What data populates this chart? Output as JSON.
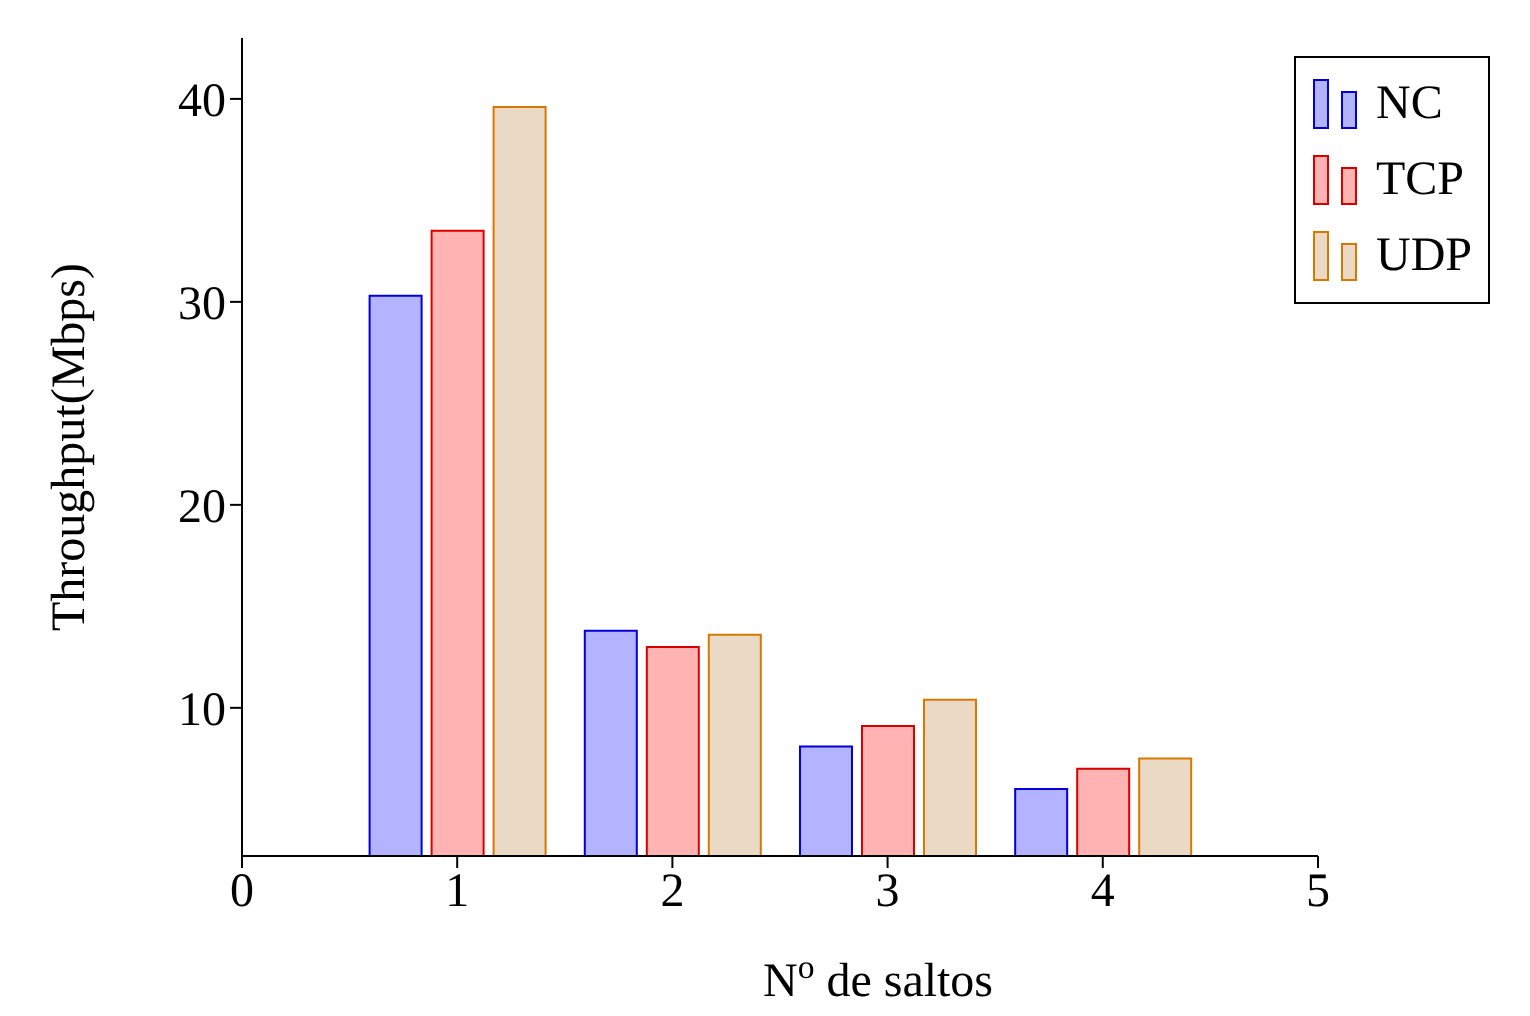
{
  "chart_data": {
    "type": "bar",
    "xlabel": "N$^{o}$ de saltos",
    "ylabel": "Throughput(Mbps)",
    "x": [
      1,
      2,
      3,
      4
    ],
    "series": [
      {
        "name": "NC",
        "color": "#b3b3ff",
        "values": [
          30.3,
          13.8,
          8.1,
          6.0
        ]
      },
      {
        "name": "TCP",
        "color": "#ffb3b3",
        "values": [
          33.5,
          13.0,
          9.1,
          7.0
        ]
      },
      {
        "name": "UDP",
        "color": "#ead9c4",
        "values": [
          39.6,
          13.6,
          10.4,
          7.5
        ]
      }
    ],
    "xlim": [
      0,
      5
    ],
    "xticks": [
      0,
      1,
      2,
      3,
      4,
      5
    ],
    "ylim": [
      2.7,
      43
    ],
    "yticks": [
      10,
      20,
      30,
      40
    ],
    "grid": false,
    "legend": "top right"
  }
}
